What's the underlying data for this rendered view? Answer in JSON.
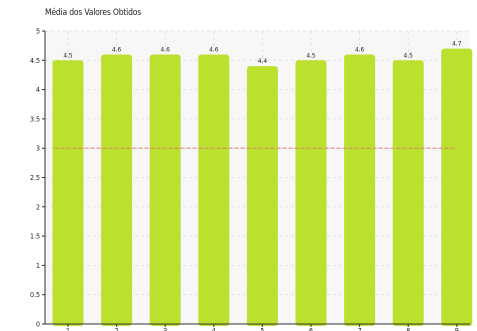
{
  "chart_data": {
    "type": "bar",
    "title": "Média dos Valores Obtidos",
    "categories": [
      "1",
      "2",
      "3",
      "4",
      "5",
      "6",
      "7",
      "8",
      "9"
    ],
    "values": [
      4.5,
      4.6,
      4.6,
      4.6,
      4.4,
      4.5,
      4.6,
      4.5,
      4.7
    ],
    "data_labels": [
      "4.5",
      "4.6",
      "4.6",
      "4.6",
      "4.4",
      "4.5",
      "4.6",
      "4.5",
      "4.7"
    ],
    "y_ticks": [
      0,
      0.5,
      1,
      1.5,
      2,
      2.5,
      3,
      3.5,
      4,
      4.5,
      5
    ],
    "y_tick_labels": [
      "0",
      "0.5",
      "1",
      "1.5",
      "2",
      "2.5",
      "3",
      "3.5",
      "4",
      "4.5",
      "5"
    ],
    "ylim": [
      0,
      5
    ],
    "reference_line": 3,
    "xlabel": "",
    "ylabel": "",
    "grid": true,
    "colors": {
      "bar": "#bce02e",
      "reference_line": "#e07070",
      "grid": "#dddddd",
      "axis": "#333333",
      "plot_background": "#f7f7f7"
    }
  }
}
